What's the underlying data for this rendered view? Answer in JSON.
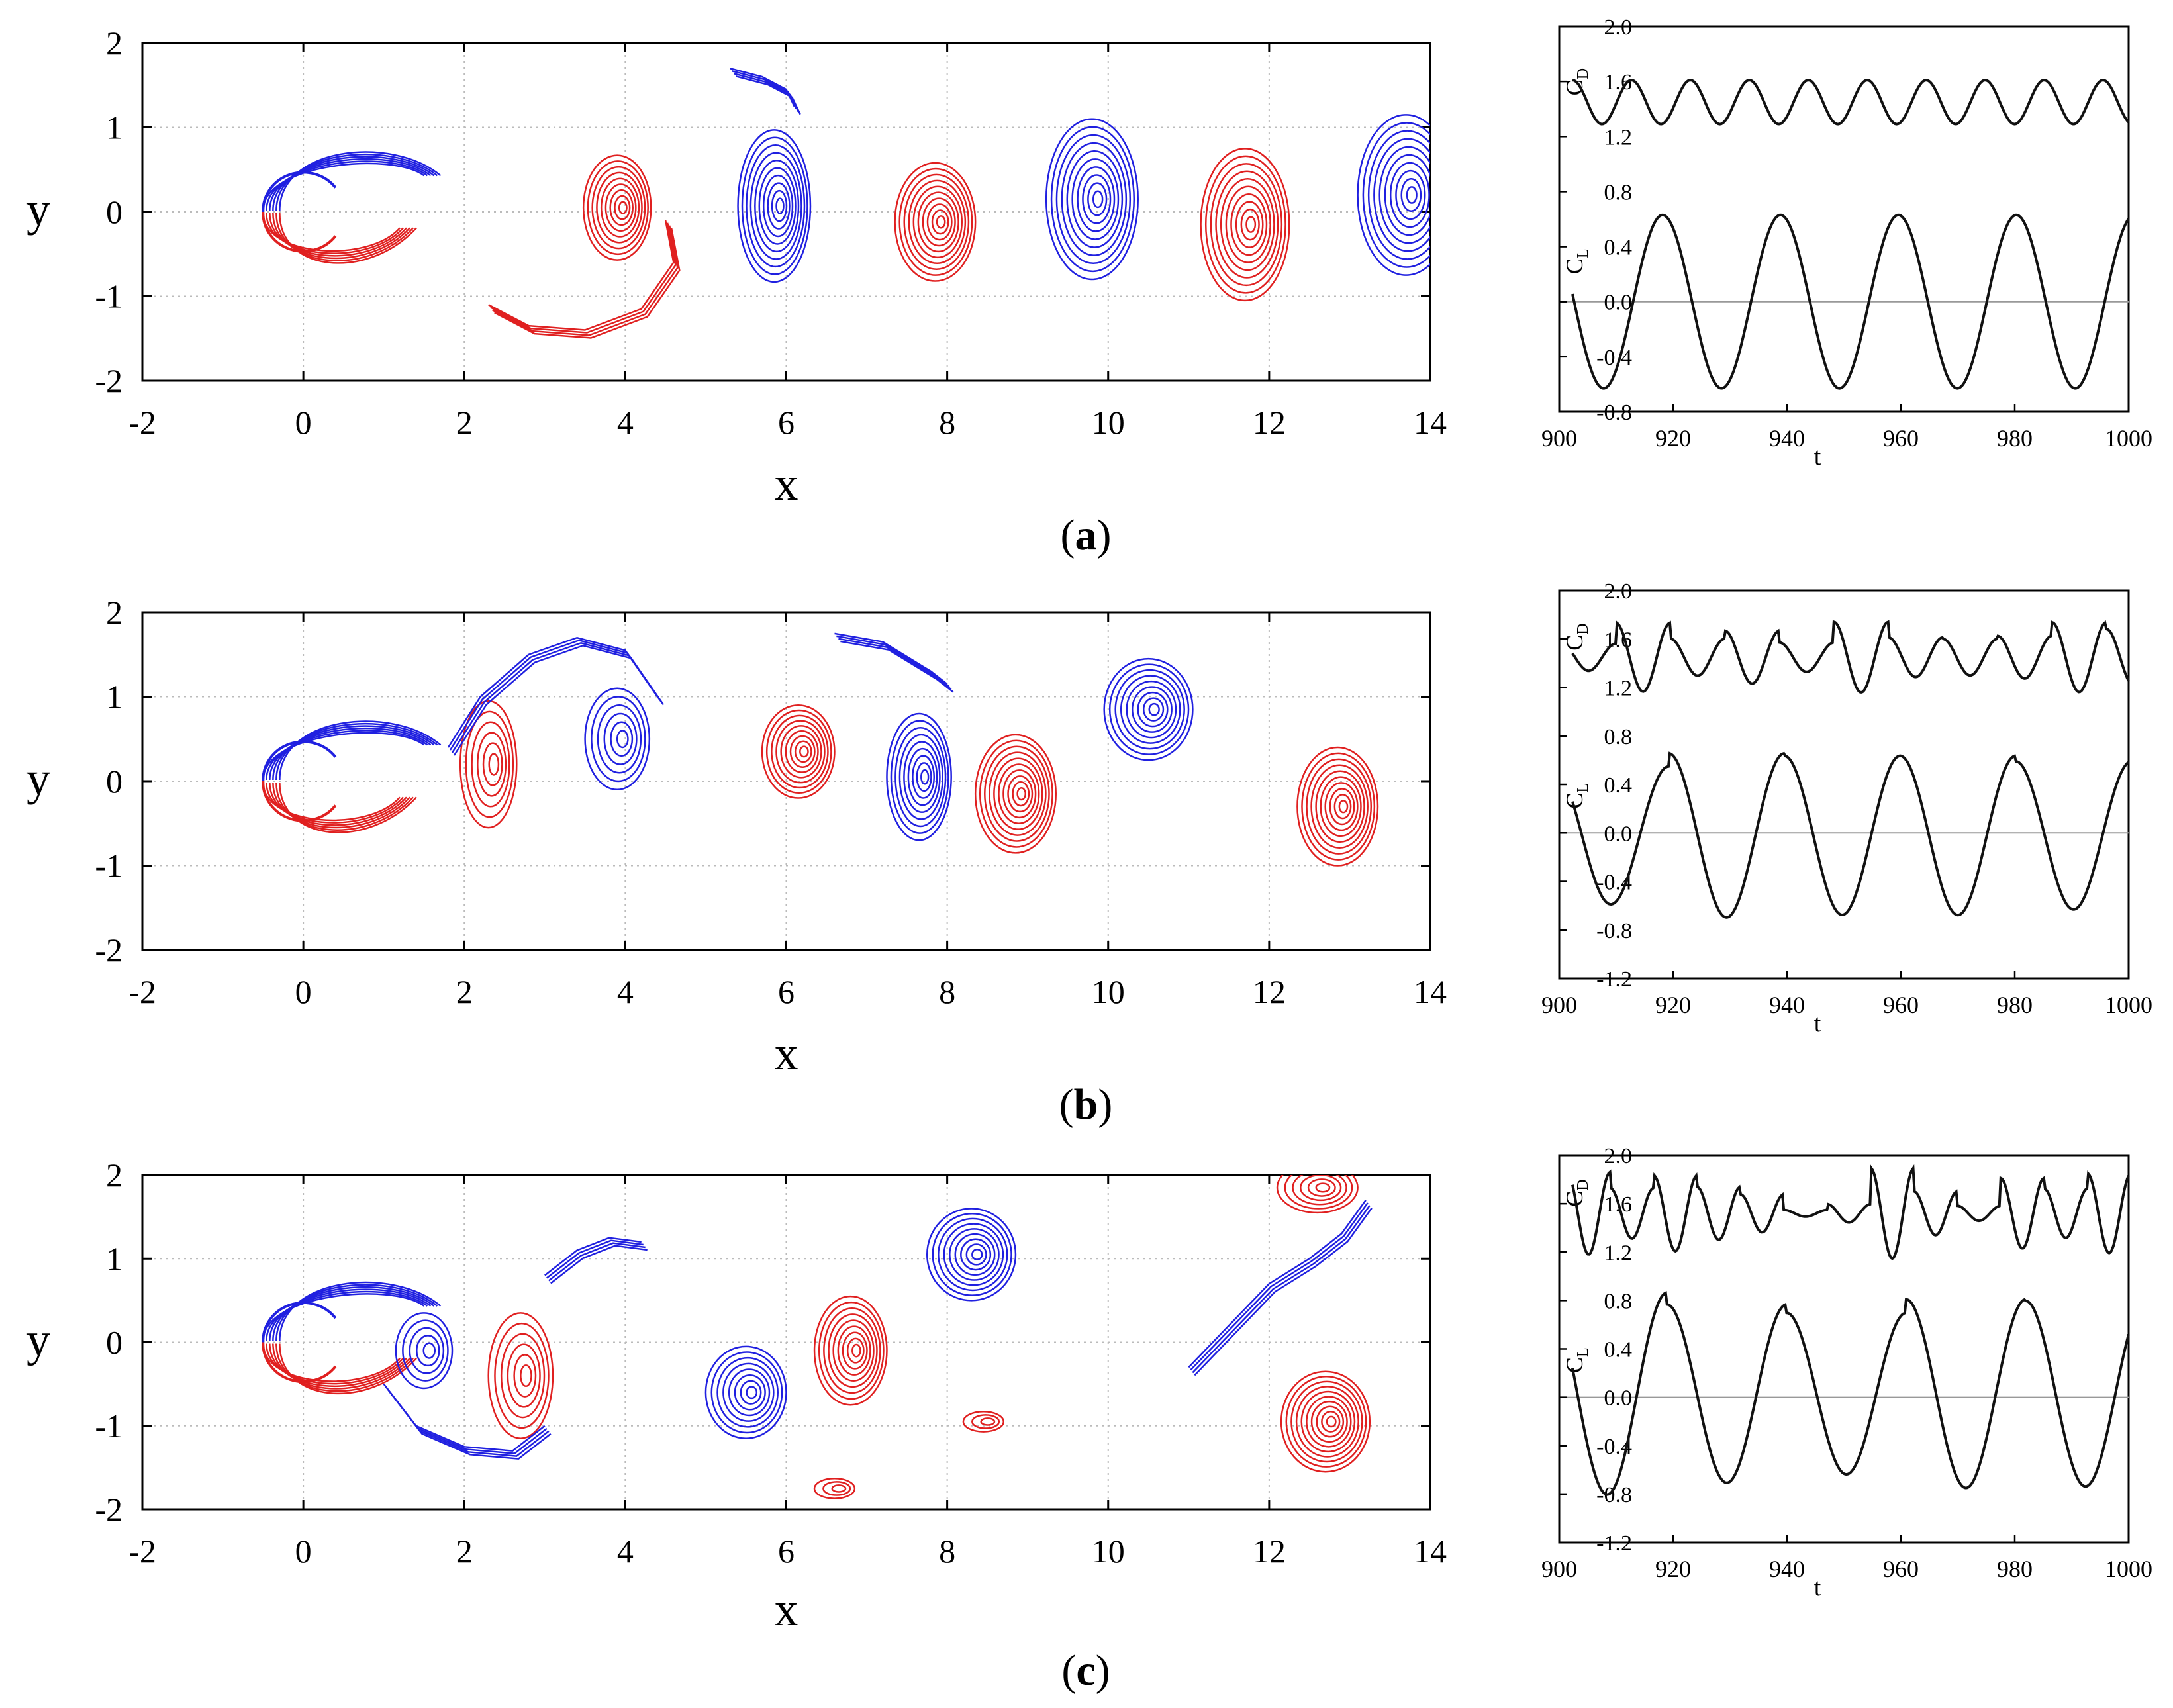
{
  "figure": {
    "panels": [
      {
        "caption_open": "(",
        "caption_letter": "a",
        "caption_close": ")"
      },
      {
        "caption_open": "(",
        "caption_letter": "b",
        "caption_close": ")"
      },
      {
        "caption_open": "(",
        "caption_letter": "c",
        "caption_close": ")"
      }
    ],
    "colors": {
      "positive_vorticity": "#2020e0",
      "negative_vorticity": "#e02020",
      "axis": "#000000",
      "grid": "#bbbbbb"
    }
  },
  "chart_data": [
    {
      "type": "contour",
      "panel": "a",
      "xlabel": "x",
      "ylabel": "y",
      "xlim": [
        -2,
        14
      ],
      "ylim": [
        -2,
        2
      ],
      "xticks": [
        "-2",
        "0",
        "2",
        "4",
        "6",
        "8",
        "10",
        "12",
        "14"
      ],
      "yticks": [
        "2",
        "1",
        "0",
        "-1",
        "-2"
      ],
      "grid": true,
      "vortices": [
        {
          "sign": "neg",
          "x": 3.9,
          "y": 0.05,
          "rx": 0.42,
          "ry": 0.62,
          "rings": 9
        },
        {
          "sign": "pos",
          "x": 5.85,
          "y": 0.07,
          "rx": 0.45,
          "ry": 0.9,
          "rings": 10
        },
        {
          "sign": "neg",
          "x": 7.85,
          "y": -0.12,
          "rx": 0.5,
          "ry": 0.7,
          "rings": 10
        },
        {
          "sign": "pos",
          "x": 9.8,
          "y": 0.15,
          "rx": 0.57,
          "ry": 0.95,
          "rings": 10
        },
        {
          "sign": "neg",
          "x": 11.7,
          "y": -0.15,
          "rx": 0.55,
          "ry": 0.9,
          "rings": 10
        },
        {
          "sign": "pos",
          "x": 13.7,
          "y": 0.2,
          "rx": 0.6,
          "ry": 0.95,
          "rings": 10
        }
      ],
      "filaments": [
        {
          "sign": "pos",
          "x": [
            5.3,
            5.7,
            6.0,
            6.1
          ],
          "y": [
            1.7,
            1.6,
            1.45,
            1.25
          ]
        },
        {
          "sign": "neg",
          "x": [
            2.3,
            2.8,
            3.5,
            4.2,
            4.6,
            4.5
          ],
          "y": [
            -1.1,
            -1.35,
            -1.4,
            -1.15,
            -0.6,
            -0.1
          ]
        }
      ]
    },
    {
      "type": "line",
      "panel": "a",
      "xlabel": "t",
      "xlim": [
        900,
        1000
      ],
      "ylim": [
        -0.8,
        2.0
      ],
      "xticks": [
        "900",
        "920",
        "940",
        "960",
        "980",
        "1000"
      ],
      "yticks": [
        "2.0",
        "1.6",
        "1.2",
        "0.8",
        "0.4",
        "0.0",
        "-0.4",
        "-0.8"
      ],
      "series_labels": [
        "C",
        "D",
        "C",
        "L"
      ],
      "series": [
        {
          "name": "CD",
          "mean": 1.45,
          "amp": 0.16,
          "period": 10.6,
          "phase": 0.0,
          "jitter": 0.0,
          "seed": 1
        },
        {
          "name": "CL",
          "mean": 0.0,
          "amp": 0.63,
          "period": 21.2,
          "phase": 5.0,
          "jitter": 0.0,
          "seed": 2
        }
      ]
    },
    {
      "type": "contour",
      "panel": "b",
      "xlabel": "x",
      "ylabel": "y",
      "xlim": [
        -2,
        14
      ],
      "ylim": [
        -2,
        2
      ],
      "xticks": [
        "-2",
        "0",
        "2",
        "4",
        "6",
        "8",
        "10",
        "12",
        "14"
      ],
      "yticks": [
        "2",
        "1",
        "0",
        "-1",
        "-2"
      ],
      "grid": true,
      "vortices": [
        {
          "sign": "neg",
          "x": 6.15,
          "y": 0.35,
          "rx": 0.45,
          "ry": 0.55,
          "rings": 9
        },
        {
          "sign": "pos",
          "x": 7.65,
          "y": 0.05,
          "rx": 0.4,
          "ry": 0.75,
          "rings": 9
        },
        {
          "sign": "neg",
          "x": 8.85,
          "y": -0.15,
          "rx": 0.5,
          "ry": 0.7,
          "rings": 10
        },
        {
          "sign": "pos",
          "x": 10.5,
          "y": 0.85,
          "rx": 0.55,
          "ry": 0.6,
          "rings": 9
        },
        {
          "sign": "neg",
          "x": 12.85,
          "y": -0.3,
          "rx": 0.5,
          "ry": 0.7,
          "rings": 10
        },
        {
          "sign": "pos",
          "x": 3.9,
          "y": 0.5,
          "rx": 0.4,
          "ry": 0.6,
          "rings": 6
        },
        {
          "sign": "neg",
          "x": 2.3,
          "y": 0.2,
          "rx": 0.35,
          "ry": 0.75,
          "rings": 6
        }
      ],
      "filaments": [
        {
          "sign": "pos",
          "x": [
            6.6,
            7.2,
            7.8,
            8.0
          ],
          "y": [
            1.75,
            1.65,
            1.3,
            1.15
          ]
        },
        {
          "sign": "pos",
          "x": [
            1.8,
            2.2,
            2.8,
            3.4,
            4.0,
            4.4
          ],
          "y": [
            0.4,
            1.0,
            1.5,
            1.7,
            1.55,
            1.0
          ]
        }
      ]
    },
    {
      "type": "line",
      "panel": "b",
      "xlabel": "t",
      "xlim": [
        900,
        1000
      ],
      "ylim": [
        -1.2,
        2.0
      ],
      "xticks": [
        "900",
        "920",
        "940",
        "960",
        "980",
        "1000"
      ],
      "yticks": [
        "2.0",
        "1.6",
        "1.2",
        "0.8",
        "0.4",
        "0.0",
        "-0.4",
        "-0.8",
        "-1.2"
      ],
      "series_labels": [
        "C",
        "D",
        "C",
        "L"
      ],
      "series": [
        {
          "name": "CD",
          "mean": 1.45,
          "amp": 0.18,
          "period": 9.8,
          "phase": 2.0,
          "jitter": 0.12,
          "seed": 3
        },
        {
          "name": "CL",
          "mean": -0.02,
          "amp": 0.64,
          "period": 20.8,
          "phase": 3.5,
          "jitter": 0.08,
          "seed": 4
        }
      ]
    },
    {
      "type": "contour",
      "panel": "c",
      "xlabel": "x",
      "ylabel": "y",
      "xlim": [
        -2,
        14
      ],
      "ylim": [
        -2,
        2
      ],
      "xticks": [
        "-2",
        "0",
        "2",
        "4",
        "6",
        "8",
        "10",
        "12",
        "14"
      ],
      "yticks": [
        "2",
        "1",
        "0",
        "-1",
        "-2"
      ],
      "grid": true,
      "vortices": [
        {
          "sign": "pos",
          "x": 8.3,
          "y": 1.05,
          "rx": 0.55,
          "ry": 0.55,
          "rings": 9
        },
        {
          "sign": "neg",
          "x": 6.8,
          "y": -0.1,
          "rx": 0.45,
          "ry": 0.65,
          "rings": 9
        },
        {
          "sign": "pos",
          "x": 5.5,
          "y": -0.6,
          "rx": 0.5,
          "ry": 0.55,
          "rings": 8
        },
        {
          "sign": "neg",
          "x": 12.7,
          "y": -0.95,
          "rx": 0.55,
          "ry": 0.6,
          "rings": 10
        },
        {
          "sign": "neg",
          "x": 12.6,
          "y": 1.85,
          "rx": 0.5,
          "ry": 0.3,
          "rings": 6
        },
        {
          "sign": "neg",
          "x": 8.45,
          "y": -0.95,
          "rx": 0.25,
          "ry": 0.12,
          "rings": 3
        },
        {
          "sign": "neg",
          "x": 6.6,
          "y": -1.75,
          "rx": 0.25,
          "ry": 0.12,
          "rings": 3
        },
        {
          "sign": "neg",
          "x": 2.7,
          "y": -0.4,
          "rx": 0.4,
          "ry": 0.75,
          "rings": 6
        },
        {
          "sign": "pos",
          "x": 1.5,
          "y": -0.1,
          "rx": 0.35,
          "ry": 0.45,
          "rings": 5
        }
      ],
      "filaments": [
        {
          "sign": "pos",
          "x": [
            11.0,
            11.5,
            12.0,
            12.5,
            12.9,
            13.2
          ],
          "y": [
            -0.3,
            0.2,
            0.7,
            1.0,
            1.3,
            1.7
          ]
        },
        {
          "sign": "pos",
          "x": [
            3.0,
            3.4,
            3.8,
            4.2
          ],
          "y": [
            0.8,
            1.1,
            1.25,
            1.2
          ]
        },
        {
          "sign": "pos",
          "x": [
            1.0,
            1.4,
            2.0,
            2.6,
            3.0
          ],
          "y": [
            -0.5,
            -1.0,
            -1.25,
            -1.3,
            -1.0
          ]
        }
      ]
    },
    {
      "type": "line",
      "panel": "c",
      "xlabel": "t",
      "xlim": [
        900,
        1000
      ],
      "ylim": [
        -1.2,
        2.0
      ],
      "xticks": [
        "900",
        "920",
        "940",
        "960",
        "980",
        "1000"
      ],
      "yticks": [
        "2.0",
        "1.6",
        "1.2",
        "0.8",
        "0.4",
        "0.0",
        "-0.4",
        "-0.8",
        "-1.2"
      ],
      "series_labels": [
        "C",
        "D",
        "C",
        "L"
      ],
      "series": [
        {
          "name": "CD",
          "mean": 1.52,
          "amp": 0.2,
          "period": 7.8,
          "phase": 1.0,
          "jitter": 0.18,
          "seed": 5
        },
        {
          "name": "CL",
          "mean": 0.03,
          "amp": 0.78,
          "period": 21.5,
          "phase": 4.5,
          "jitter": 0.12,
          "seed": 6
        }
      ]
    }
  ]
}
